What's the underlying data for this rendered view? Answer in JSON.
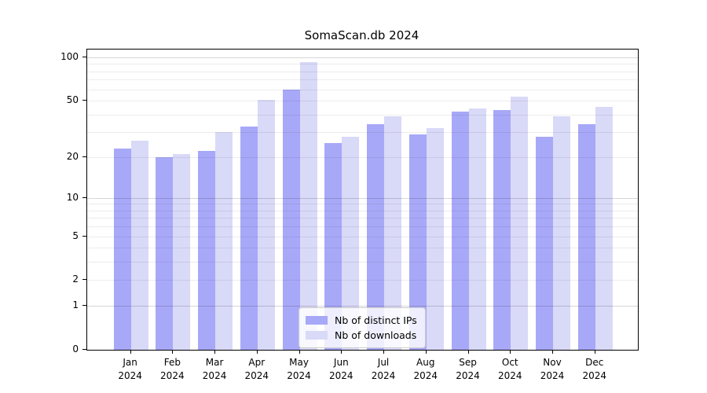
{
  "chart_data": {
    "type": "bar",
    "title": "SomaScan.db 2024",
    "categories": [
      {
        "month": "Jan",
        "year": "2024"
      },
      {
        "month": "Feb",
        "year": "2024"
      },
      {
        "month": "Mar",
        "year": "2024"
      },
      {
        "month": "Apr",
        "year": "2024"
      },
      {
        "month": "May",
        "year": "2024"
      },
      {
        "month": "Jun",
        "year": "2024"
      },
      {
        "month": "Jul",
        "year": "2024"
      },
      {
        "month": "Aug",
        "year": "2024"
      },
      {
        "month": "Sep",
        "year": "2024"
      },
      {
        "month": "Oct",
        "year": "2024"
      },
      {
        "month": "Nov",
        "year": "2024"
      },
      {
        "month": "Dec",
        "year": "2024"
      }
    ],
    "series": [
      {
        "name": "Nb of distinct IPs",
        "key": "distinct-ips",
        "color": "#a8a8f8",
        "values": [
          23,
          20,
          22,
          33,
          60,
          25,
          34,
          29,
          42,
          43,
          28,
          34
        ]
      },
      {
        "name": "Nb of downloads",
        "key": "downloads",
        "color": "#d9d9f8",
        "values": [
          26,
          21,
          30,
          51,
          93,
          28,
          39,
          32,
          44,
          53,
          39,
          45
        ]
      }
    ],
    "xlabel": "",
    "ylabel": "",
    "yscale": "log10(value+1)",
    "ylim": [
      0,
      100
    ],
    "yticks": [
      100,
      50,
      20,
      10,
      5,
      2,
      1,
      0
    ],
    "grid": true,
    "minor_gridlines": [
      2,
      3,
      4,
      5,
      6,
      7,
      8,
      9,
      20,
      30,
      40,
      50,
      60,
      70,
      80,
      90
    ],
    "major_gridlines": [
      1,
      10,
      100
    ],
    "legend_position": "inside-bottom-center"
  },
  "colors": {
    "grid_minor": "#ececec",
    "grid_major": "#d6d6d6",
    "axis": "#000000",
    "legend_border": "#cccccc",
    "background": "#ffffff"
  }
}
